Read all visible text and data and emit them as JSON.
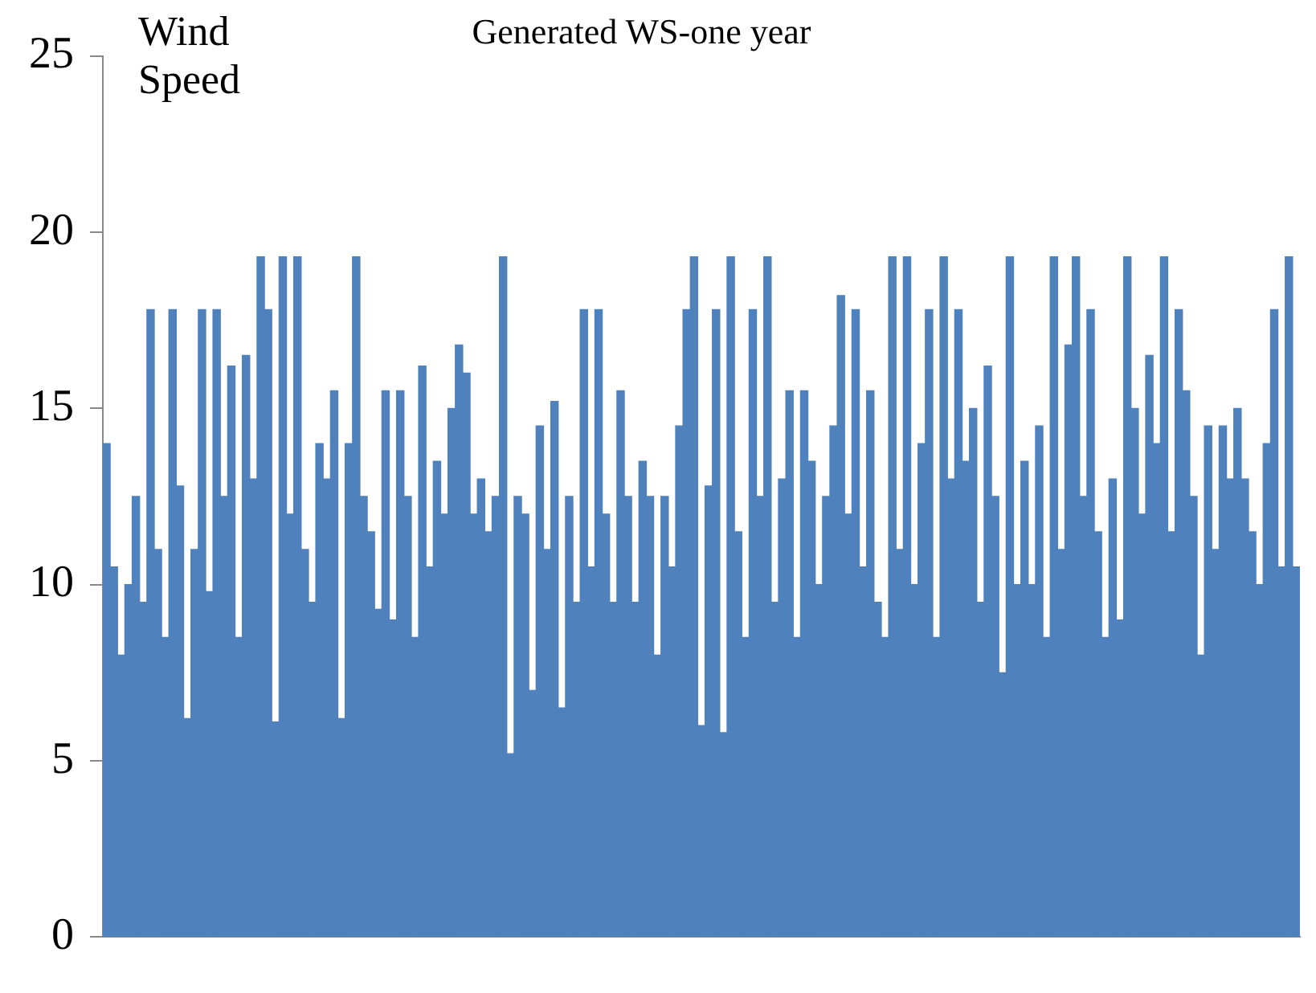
{
  "chart_data": {
    "type": "bar",
    "title": "Generated WS-one year",
    "ylabel": "Wind Speed",
    "relative": false,
    "categories": [
      null,
      null,
      null,
      null,
      null,
      null,
      null,
      null,
      null,
      null,
      null,
      null,
      null,
      null,
      null,
      null,
      null,
      null,
      null,
      null,
      null,
      null,
      null,
      null,
      null,
      null,
      null,
      null,
      null,
      null,
      null,
      null,
      null,
      null,
      null,
      null,
      null,
      null,
      null,
      null,
      null,
      null,
      null,
      null,
      null,
      null,
      null,
      null,
      null,
      null,
      null,
      null,
      null,
      null,
      null,
      null,
      null,
      null,
      null,
      null,
      null,
      null,
      null,
      null,
      null,
      null,
      null,
      null,
      null,
      null,
      null,
      null,
      null,
      null,
      null,
      null,
      null,
      null,
      null,
      null,
      null,
      null,
      null,
      null,
      null,
      null,
      null,
      null,
      null,
      null,
      null,
      null,
      null,
      null,
      null,
      null,
      null,
      null,
      null,
      null,
      null,
      null,
      null,
      null,
      null,
      null,
      null,
      null,
      null,
      null,
      null,
      null,
      null,
      null,
      null,
      null,
      null,
      null,
      null,
      null,
      null,
      null,
      null,
      null,
      null,
      null,
      null,
      null,
      null,
      null,
      null,
      null,
      null,
      null,
      null,
      null,
      null,
      null,
      null,
      null,
      null,
      null,
      null,
      null,
      null,
      null,
      null,
      null,
      null,
      null,
      null,
      null,
      null,
      null,
      null,
      null,
      null,
      null,
      null,
      null,
      null,
      null,
      null
    ],
    "values": [
      14,
      10.5,
      8,
      10,
      12.5,
      9.5,
      17.8,
      11,
      8.5,
      17.8,
      12.8,
      6.2,
      11,
      17.8,
      9.8,
      17.8,
      12.5,
      16.2,
      8.5,
      16.5,
      13,
      19.3,
      17.8,
      6.1,
      19.3,
      12,
      19.3,
      11,
      9.5,
      14,
      13,
      15.5,
      6.2,
      14,
      19.3,
      12.5,
      11.5,
      9.3,
      15.5,
      9,
      15.5,
      12.5,
      8.5,
      16.2,
      10.5,
      13.5,
      12,
      15,
      16.8,
      16,
      12,
      13,
      11.5,
      12.5,
      19.3,
      5.2,
      12.5,
      12,
      7,
      14.5,
      11,
      15.2,
      6.5,
      12.5,
      9.5,
      17.8,
      10.5,
      17.8,
      12,
      9.5,
      15.5,
      12.5,
      9.5,
      13.5,
      12.5,
      8,
      12.5,
      10.5,
      14.5,
      17.8,
      19.3,
      6,
      12.8,
      17.8,
      5.8,
      19.3,
      11.5,
      8.5,
      17.8,
      12.5,
      19.3,
      9.5,
      13,
      15.5,
      8.5,
      15.5,
      13.5,
      10,
      12.5,
      14.5,
      18.2,
      12,
      17.8,
      10.5,
      15.5,
      9.5,
      8.5,
      19.3,
      11,
      19.3,
      10,
      14,
      17.8,
      8.5,
      19.3,
      13,
      17.8,
      13.5,
      15,
      9.5,
      16.2,
      12.5,
      7.5,
      19.3,
      10,
      13.5,
      10,
      14.5,
      8.5,
      19.3,
      11,
      16.8,
      19.3,
      12.5,
      17.8,
      11.5,
      8.5,
      13,
      9,
      19.3,
      15,
      12,
      16.5,
      14,
      19.3,
      11.5,
      17.8,
      15.5,
      12.5,
      8,
      14.5,
      11,
      14.5,
      13,
      15,
      13,
      11.5,
      10,
      14,
      17.8,
      10.5,
      19.3,
      10.5
    ],
    "color": "#4f81bd",
    "ylim": [
      0,
      25
    ],
    "yticks": [
      0,
      5,
      10,
      15,
      20,
      25
    ],
    "grid": false,
    "legend": false,
    "tick_labels": "y"
  }
}
